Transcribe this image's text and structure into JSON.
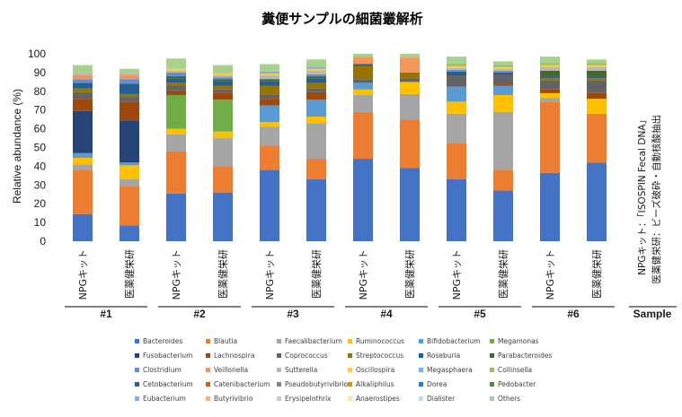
{
  "chart_data": {
    "type": "bar",
    "stacked": true,
    "title": "糞便サンプルの細菌叢解析",
    "ylabel": "Relative abundance (%)",
    "ylim": [
      0,
      100
    ],
    "yticks": [
      0,
      10,
      20,
      30,
      40,
      50,
      60,
      70,
      80,
      90,
      100
    ],
    "grid": false,
    "legend_position": "bottom",
    "xlabel": "Sample",
    "groups": [
      "#1",
      "#2",
      "#3",
      "#4",
      "#5",
      "#6"
    ],
    "categories": [
      {
        "label": "NPGキット",
        "group": "#1"
      },
      {
        "label": "医薬健栄研",
        "group": "#1"
      },
      {
        "label": "NPGキット",
        "group": "#2"
      },
      {
        "label": "医薬健栄研",
        "group": "#2"
      },
      {
        "label": "NPGキット",
        "group": "#3"
      },
      {
        "label": "医薬健栄研",
        "group": "#3"
      },
      {
        "label": "NPGキット",
        "group": "#4"
      },
      {
        "label": "医薬健栄研",
        "group": "#4"
      },
      {
        "label": "NPGキット",
        "group": "#5"
      },
      {
        "label": "医薬健栄研",
        "group": "#5"
      },
      {
        "label": "NPGキット",
        "group": "#6"
      },
      {
        "label": "医薬健栄研",
        "group": "#6"
      }
    ],
    "legend_note": [
      "NPGキット：「ISOSPIN Fecal DNA」",
      "医薬健栄研：ビーズ破砕・自動核酸抽出"
    ],
    "series": [
      {
        "name": "Bacteroides",
        "color": "#4472c4",
        "values": [
          14.5,
          8.5,
          25.5,
          26,
          38,
          33,
          44,
          39,
          33,
          27,
          36.5,
          42
        ]
      },
      {
        "name": "Blautia",
        "color": "#ed7d31",
        "values": [
          23.5,
          21,
          22.5,
          14,
          13,
          11,
          25,
          26,
          19.5,
          11,
          38,
          26
        ]
      },
      {
        "name": "Faecalibacterium",
        "color": "#a5a5a5",
        "values": [
          3,
          3.5,
          9,
          15,
          10,
          19,
          9,
          13.5,
          15.5,
          31,
          2,
          0
        ]
      },
      {
        "name": "Ruminococcus",
        "color": "#ffc000",
        "values": [
          3.5,
          7.5,
          3,
          3.5,
          2.5,
          3.5,
          3,
          6.5,
          6.5,
          9,
          2.5,
          8
        ]
      },
      {
        "name": "Bifidobacterium",
        "color": "#5b9bd5",
        "values": [
          2.5,
          1.5,
          0,
          0,
          9,
          9,
          3.5,
          0,
          8,
          5,
          0,
          0
        ]
      },
      {
        "name": "Megamonas",
        "color": "#70ad47",
        "values": [
          0,
          0,
          18,
          17,
          0,
          0,
          0,
          0,
          0,
          0,
          0,
          0
        ]
      },
      {
        "name": "Fusobacterium",
        "color": "#264478",
        "values": [
          22.5,
          22.5,
          0,
          0,
          0,
          0,
          0,
          0,
          0,
          0,
          0,
          0
        ]
      },
      {
        "name": "Lachnospira",
        "color": "#9e480e",
        "values": [
          6.5,
          10,
          2.5,
          3.5,
          3.5,
          4,
          0,
          0,
          0,
          1,
          2,
          3
        ]
      },
      {
        "name": "Coprococcus",
        "color": "#636363",
        "values": [
          3.5,
          2.5,
          2.5,
          2,
          2,
          2,
          2,
          2,
          6,
          5,
          5,
          7
        ]
      },
      {
        "name": "Streptococcus",
        "color": "#997300",
        "values": [
          2,
          1.5,
          1.5,
          2,
          5,
          3,
          7,
          3,
          0,
          0,
          1,
          1
        ]
      },
      {
        "name": "Roseburia",
        "color": "#255e91",
        "values": [
          3,
          5.5,
          2.5,
          2.5,
          2.5,
          2.5,
          1,
          0,
          2,
          1,
          1,
          1
        ]
      },
      {
        "name": "Parabacteroides",
        "color": "#43682b",
        "values": [
          0,
          0,
          1,
          1,
          1,
          1,
          0,
          0,
          0,
          0,
          3,
          3
        ]
      },
      {
        "name": "Clostridium",
        "color": "#698ed0",
        "values": [
          2,
          2.5,
          2,
          1,
          0,
          1,
          0,
          0,
          1,
          1,
          0,
          0
        ]
      },
      {
        "name": "Veillonella",
        "color": "#f1975a",
        "values": [
          2,
          2,
          0,
          0,
          0,
          0,
          4,
          8,
          0,
          0,
          0,
          0
        ]
      },
      {
        "name": "Sutterella",
        "color": "#b7b7b7",
        "values": [
          1,
          1,
          1,
          1,
          2,
          2,
          0,
          0,
          1,
          1,
          2,
          2
        ]
      },
      {
        "name": "Oscillospira",
        "color": "#ffcd33",
        "values": [
          0,
          0,
          1,
          1,
          1,
          1,
          0,
          0,
          1,
          1,
          1,
          1
        ]
      },
      {
        "name": "Megasphaera",
        "color": "#7cafdd",
        "values": [
          0,
          0,
          0,
          0,
          1,
          1,
          0,
          0,
          0,
          0,
          0,
          0
        ]
      },
      {
        "name": "Collinsella",
        "color": "#8cc168",
        "values": [
          0,
          0,
          0,
          0,
          0,
          0,
          0,
          0,
          1,
          1,
          1,
          1
        ]
      },
      {
        "name": "Cetobacterium",
        "color": "#335aa1",
        "values": [
          0,
          0,
          0,
          0,
          0,
          0,
          0,
          0,
          0,
          0,
          0,
          0
        ]
      },
      {
        "name": "Catenibacterium",
        "color": "#d26012",
        "values": [
          0,
          0,
          0,
          0,
          0,
          0,
          0,
          0,
          0,
          0,
          0,
          0
        ]
      },
      {
        "name": "Pseudobutyrivibrio",
        "color": "#848484",
        "values": [
          0,
          0,
          0,
          0,
          0,
          0,
          0,
          0,
          0,
          0,
          0,
          0
        ]
      },
      {
        "name": "Alkaliphilus",
        "color": "#cc9a00",
        "values": [
          0,
          0,
          0,
          0,
          0,
          0,
          0,
          0,
          0,
          0,
          0,
          0
        ]
      },
      {
        "name": "Dorea",
        "color": "#327dc2",
        "values": [
          0,
          0,
          0,
          0,
          0,
          0,
          0,
          0,
          0,
          0,
          0,
          0
        ]
      },
      {
        "name": "Pedobacter",
        "color": "#5a8a39",
        "values": [
          0,
          0,
          0,
          0,
          0,
          0,
          0,
          0,
          0,
          0,
          0,
          0
        ]
      },
      {
        "name": "Eubacterium",
        "color": "#8faadc",
        "values": [
          0,
          0,
          0,
          0,
          0,
          0,
          0,
          0,
          0,
          0,
          0,
          0
        ]
      },
      {
        "name": "Butyrivibrio",
        "color": "#f4b183",
        "values": [
          0,
          0,
          0,
          0,
          0,
          0,
          0,
          0,
          0,
          0,
          0,
          0
        ]
      },
      {
        "name": "Erysipelothrix",
        "color": "#c9c9c9",
        "values": [
          0,
          0,
          0,
          0,
          0,
          0,
          0,
          0,
          0,
          0,
          0,
          0
        ]
      },
      {
        "name": "Anaerostipes",
        "color": "#ffe699",
        "values": [
          0,
          0,
          0,
          0,
          0,
          0,
          0,
          0,
          0,
          0,
          0,
          0
        ]
      },
      {
        "name": "Dialister",
        "color": "#bdd7ee",
        "values": [
          0,
          0,
          0,
          0,
          0,
          0,
          0,
          0,
          0,
          0,
          0,
          0
        ]
      },
      {
        "name": "Others",
        "color": "#a9d18e",
        "values": [
          4.5,
          2.5,
          5.5,
          4.5,
          4,
          4,
          1.5,
          2,
          4,
          2,
          3.5,
          2
        ]
      }
    ]
  }
}
